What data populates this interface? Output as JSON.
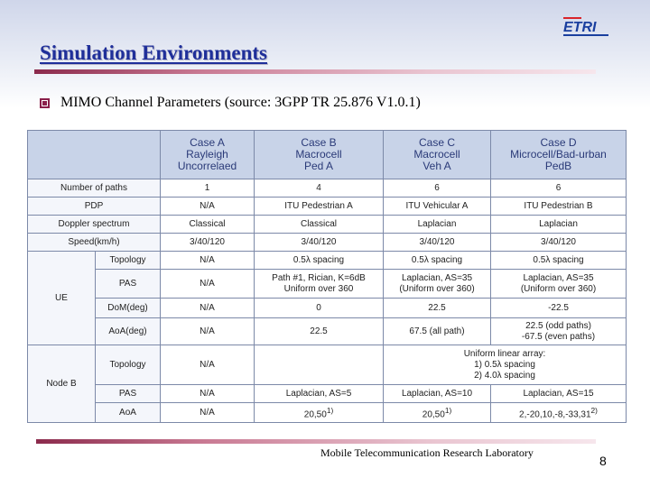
{
  "slide": {
    "title": "Simulation Environments",
    "bullet": "MIMO Channel Parameters (source: 3GPP TR 25.876 V1.0.1)",
    "logo_text": "ETRI",
    "footer": "Mobile Telecommunication Research Laboratory",
    "page_number": "8"
  },
  "colors": {
    "title": "#1f2f9a",
    "accent_rule": "#8b2a4c",
    "header_fill": "#c8d3e8",
    "logo_blue": "#1a3f9f",
    "logo_red": "#d9242b"
  },
  "icons": {
    "bullet": "square-bullet-icon",
    "logo": "etri-logo"
  },
  "table": {
    "headers": [
      [
        "Case A",
        "Rayleigh",
        "Uncorrelaed"
      ],
      [
        "Case B",
        "Macrocell",
        "Ped A"
      ],
      [
        "Case C",
        "Macrocell",
        "Veh A"
      ],
      [
        "Case D",
        "Microcell/Bad-urban",
        "PedB"
      ]
    ],
    "rows": {
      "paths": {
        "label": "Number of paths",
        "values": [
          "1",
          "4",
          "6",
          "6"
        ]
      },
      "pdp": {
        "label": "PDP",
        "values": [
          "N/A",
          "ITU Pedestrian A",
          "ITU Vehicular A",
          "ITU Pedestrian B"
        ]
      },
      "doppler": {
        "label": "Doppler spectrum",
        "values": [
          "Classical",
          "Classical",
          "Laplacian",
          "Laplacian"
        ]
      },
      "speed": {
        "label": "Speed(km/h)",
        "values": [
          "3/40/120",
          "3/40/120",
          "3/40/120",
          "3/40/120"
        ]
      }
    },
    "ue": {
      "group": "UE",
      "topology": {
        "label": "Topology",
        "values": [
          "N/A",
          "0.5λ spacing",
          "0.5λ spacing",
          "0.5λ spacing"
        ]
      },
      "pas": {
        "label": "PAS",
        "case_a": "N/A",
        "case_b": [
          "Path #1, Rician,  K=6dB",
          "Uniform over 360"
        ],
        "case_c": [
          "Laplacian, AS=35",
          "(Uniform over 360)"
        ],
        "case_d": [
          "Laplacian, AS=35",
          "(Uniform over 360)"
        ]
      },
      "dom": {
        "label": "DoM(deg)",
        "values": [
          "N/A",
          "0",
          "22.5",
          "-22.5"
        ]
      },
      "aoa": {
        "label": "AoA(deg)",
        "case_a": "N/A",
        "case_b": "22.5",
        "case_c": "67.5 (all path)",
        "case_d": [
          "22.5 (odd paths)",
          "-67.5 (even paths)"
        ]
      }
    },
    "nodeb": {
      "group": "Node B",
      "topology": {
        "label": "Topology",
        "case_a": "N/A",
        "merged": [
          "Uniform linear array:",
          "1) 0.5λ spacing",
          "2) 4.0λ spacing"
        ]
      },
      "pas": {
        "label": "PAS",
        "values": [
          "N/A",
          "Laplacian, AS=5",
          "Laplacian, AS=10",
          "Laplacian, AS=15"
        ]
      },
      "aoa": {
        "label": "AoA",
        "case_a": "N/A",
        "case_b": {
          "text": "20,50",
          "sup": "1)"
        },
        "case_c": {
          "text": "20,50",
          "sup": "1)"
        },
        "case_d": {
          "text": "2,-20,10,-8,-33,31",
          "sup": "2)"
        }
      }
    }
  }
}
